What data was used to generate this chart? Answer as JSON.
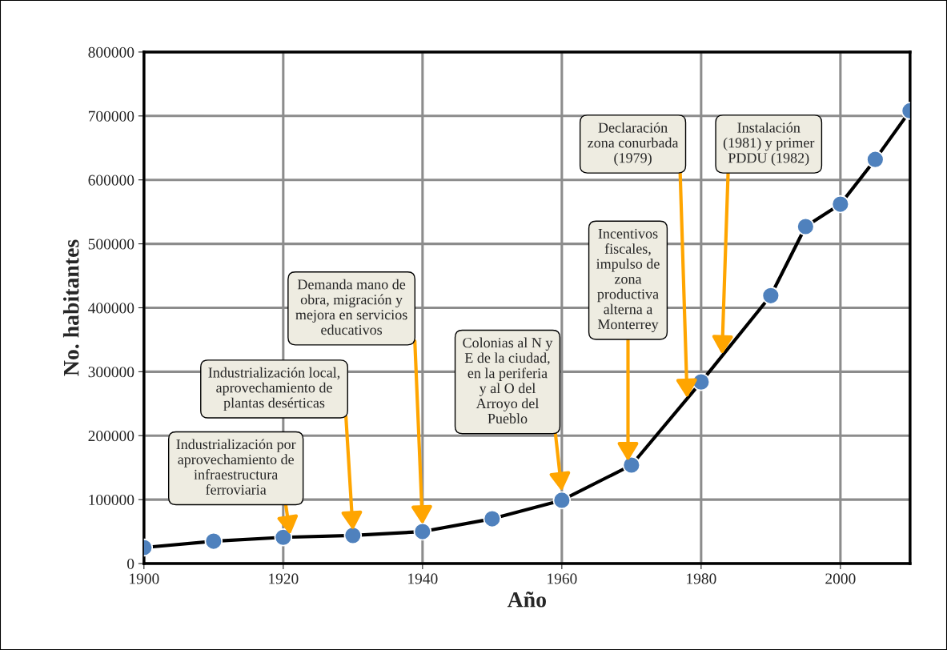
{
  "chart_data": {
    "type": "line",
    "xlabel": "Año",
    "ylabel": "No. habitantes",
    "x": [
      1900,
      1910,
      1920,
      1930,
      1940,
      1950,
      1960,
      1970,
      1980,
      1990,
      1995,
      2000,
      2005,
      2010
    ],
    "series": [
      {
        "color": "#4f81bd",
        "values": [
          25000,
          35000,
          41000,
          44000,
          50000,
          70000,
          99000,
          154000,
          284000,
          419000,
          527000,
          562000,
          632000,
          708000
        ]
      }
    ],
    "marker": "circle",
    "line_style": "solid",
    "xlim": [
      1900,
      2010
    ],
    "xticks": [
      1900,
      1920,
      1940,
      1960,
      1980,
      2000
    ],
    "ylim": [
      0,
      800000
    ],
    "yticks": [
      0,
      100000,
      200000,
      300000,
      400000,
      500000,
      600000,
      700000,
      800000
    ],
    "grid": true,
    "legend": false,
    "annotations": [
      {
        "text": "Industrialización por\naprovechamiento de\ninfraestructura\nferroviaria",
        "x": 1921,
        "y": 45000
      },
      {
        "text": "Industrialización local,\naprovechamiento de\nplantas desérticas",
        "x": 1930,
        "y": 52000
      },
      {
        "text": "Demanda mano de\nobra, migración y\nmejora en servicios\neducativos",
        "x": 1940,
        "y": 61000
      },
      {
        "text": "Colonias al N y\nE de la ciudad,\nen la periferia\ny al O del\nArroyo del\nPueblo",
        "x": 1960,
        "y": 113000
      },
      {
        "text": "Incentivos\nfiscales,\nimpulso de\nzona\nproductiva\nalterna a\nMonterrey",
        "x": 1969.5,
        "y": 160000
      },
      {
        "text": "Declaración\nzona conurbada\n(1979)",
        "x": 1978,
        "y": 259000
      },
      {
        "text": "Instalación\n(1981) y primer\nPDDU (1982)",
        "x": 1983,
        "y": 327000
      }
    ]
  }
}
